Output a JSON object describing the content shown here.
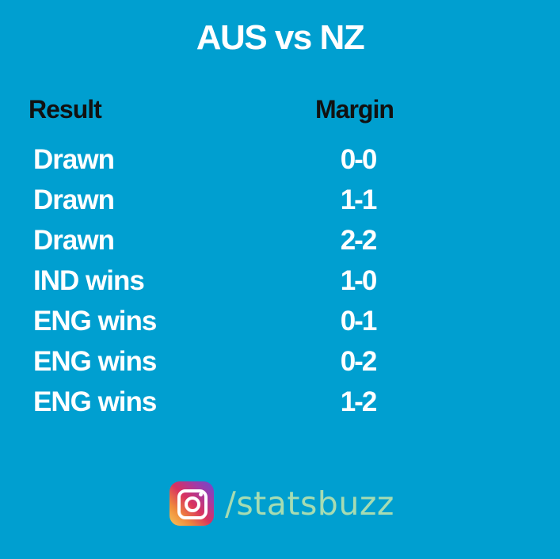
{
  "title": "AUS vs NZ",
  "headers": {
    "result": "Result",
    "margin": "Margin"
  },
  "rows": [
    {
      "result": "Drawn",
      "margin": "0-0"
    },
    {
      "result": "Drawn",
      "margin": "1-1"
    },
    {
      "result": "Drawn",
      "margin": "2-2"
    },
    {
      "result": "IND wins",
      "margin": "1-0"
    },
    {
      "result": "ENG wins",
      "margin": "0-1"
    },
    {
      "result": "ENG wins",
      "margin": "0-2"
    },
    {
      "result": "ENG wins",
      "margin": "1-2"
    }
  ],
  "brand": {
    "icon": "instagram-icon",
    "handle": "/statsbuzz"
  },
  "colors": {
    "background": "#009fd0",
    "title": "#ffffff",
    "header": "#111111",
    "handle": "#a6dcb2"
  }
}
